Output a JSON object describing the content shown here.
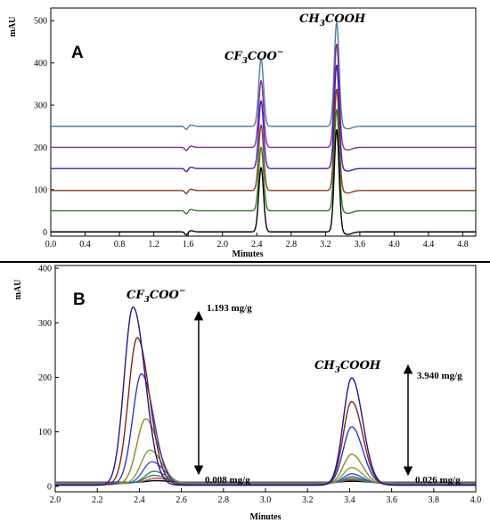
{
  "chart_data": [
    {
      "panel": "A",
      "type": "line",
      "xlabel": "Minutes",
      "ylabel": "mAU",
      "xlim": [
        0.0,
        4.95
      ],
      "ylim": [
        -10,
        530
      ],
      "x_ticks": [
        "0.0",
        "0.4",
        "0.8",
        "1.2",
        "1.6",
        "2.0",
        "2.4",
        "2.8",
        "3.2",
        "3.6",
        "4.0",
        "4.4",
        "4.8"
      ],
      "y_ticks": [
        "0",
        "100",
        "200",
        "300",
        "400",
        "500"
      ],
      "peaks": [
        {
          "label": "CF₃COO⁻",
          "formula": {
            "a": "CF",
            "sub": "3",
            "b": "COO",
            "sup": "−"
          },
          "retention_min": 2.45
        },
        {
          "label": "CH₃COOH",
          "formula": {
            "a": "CH",
            "sub": "3",
            "b": "COOH",
            "sup": ""
          },
          "retention_min": 3.33
        }
      ],
      "dip_min": 1.58,
      "series": [
        {
          "color": "#000000",
          "baseline": 0,
          "peak1_height": 152,
          "peak2_height": 242
        },
        {
          "color": "#2e7d1e",
          "baseline": 50,
          "peak1_height": 150,
          "peak2_height": 240
        },
        {
          "color": "#8b3a1a",
          "baseline": 98,
          "peak1_height": 155,
          "peak2_height": 240
        },
        {
          "color": "#3a1fc0",
          "baseline": 150,
          "peak1_height": 160,
          "peak2_height": 245
        },
        {
          "color": "#8a2b9a",
          "baseline": 200,
          "peak1_height": 158,
          "peak2_height": 245
        },
        {
          "color": "#4a7fa0",
          "baseline": 250,
          "peak1_height": 160,
          "peak2_height": 245
        }
      ]
    },
    {
      "panel": "B",
      "type": "line",
      "xlabel": "Minutes",
      "ylabel": "mAU",
      "xlim": [
        2.0,
        4.0
      ],
      "ylim": [
        -10,
        405
      ],
      "x_ticks": [
        "2.0",
        "2.2",
        "2.4",
        "2.6",
        "2.8",
        "3.0",
        "3.2",
        "3.4",
        "3.6",
        "3.8",
        "4.0"
      ],
      "y_ticks": [
        "0",
        "100",
        "200",
        "300",
        "400"
      ],
      "peaks": [
        {
          "label": "CF₃COO⁻",
          "formula": {
            "a": "CF",
            "sub": "3",
            "b": "COO",
            "sup": "−"
          },
          "high": "1.193 mg/g",
          "low": "0.008 mg/g"
        },
        {
          "label": "CH₃COOH",
          "formula": {
            "a": "CH",
            "sub": "3",
            "b": "COOH",
            "sup": ""
          },
          "high": "3.940 mg/g",
          "low": "0.026 mg/g"
        }
      ],
      "series": [
        {
          "color": "#2a1585",
          "peak1_x": 2.37,
          "peak1_height": 327,
          "peak2_height": 197
        },
        {
          "color": "#7a2a18",
          "peak1_x": 2.39,
          "peak1_height": 270,
          "peak2_height": 153
        },
        {
          "color": "#2a3ad0",
          "peak1_x": 2.41,
          "peak1_height": 203,
          "peak2_height": 106
        },
        {
          "color": "#8a8a20",
          "peak1_x": 2.43,
          "peak1_height": 120,
          "peak2_height": 55
        },
        {
          "color": "#7aa040",
          "peak1_x": 2.45,
          "peak1_height": 62,
          "peak2_height": 30
        },
        {
          "color": "#4a4ad8",
          "peak1_x": 2.46,
          "peak1_height": 40,
          "peak2_height": 18
        },
        {
          "color": "#1a8a6a",
          "peak1_x": 2.47,
          "peak1_height": 22,
          "peak2_height": 12
        },
        {
          "color": "#6a6a6a",
          "peak1_x": 2.47,
          "peak1_height": 14,
          "peak2_height": 8
        },
        {
          "color": "#a05050",
          "peak1_x": 2.48,
          "peak1_height": 8,
          "peak2_height": 5
        },
        {
          "color": "#000000",
          "peak1_x": 2.48,
          "peak1_height": 3,
          "peak2_height": 2
        }
      ]
    }
  ]
}
